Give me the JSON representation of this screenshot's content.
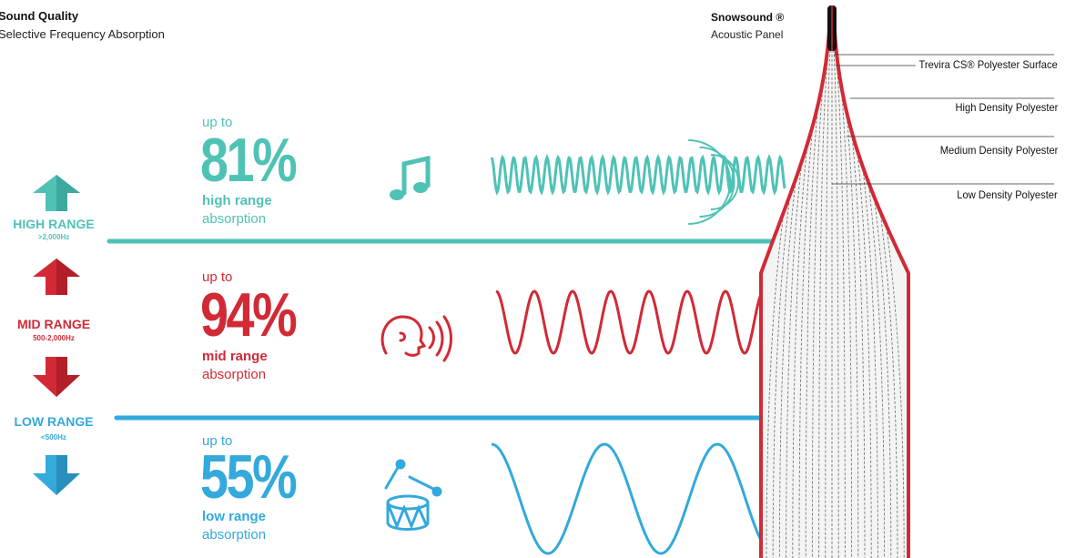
{
  "header": {
    "title": "Sound Quality",
    "subtitle": "Selective Frequency Absorption"
  },
  "product": {
    "title": "Snowsound ®",
    "subtitle": "Acoustic Panel"
  },
  "ranges": [
    {
      "label": "HIGH RANGE",
      "freq": ">2,000Hz",
      "color": "#4fc2b6",
      "upto": "up to",
      "percent": "81%",
      "range_label": "high range",
      "absorption": "absorption",
      "icon": "music-note-icon"
    },
    {
      "label": "MID RANGE",
      "freq": "500-2,000Hz",
      "color": "#d12a36",
      "upto": "up to",
      "percent": "94%",
      "range_label": "mid range",
      "absorption": "absorption",
      "icon": "speaking-head-icon"
    },
    {
      "label": "LOW RANGE",
      "freq": "<500Hz",
      "color": "#33a9dc",
      "upto": "up to",
      "percent": "55%",
      "range_label": "low range",
      "absorption": "absorption",
      "icon": "drum-icon"
    }
  ],
  "layers": [
    "Trevira CS® Polyester Surface",
    "High Density Polyester",
    "Medium Density Polyester",
    "Low Density Polyester"
  ]
}
